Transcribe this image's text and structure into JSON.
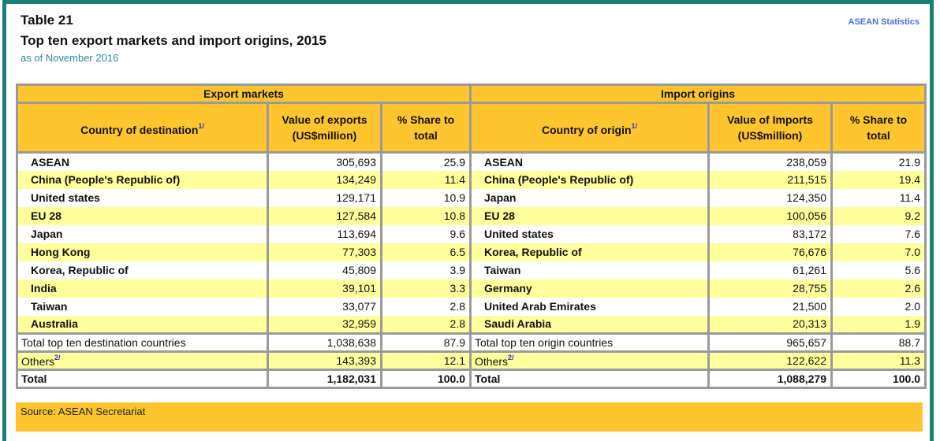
{
  "header": {
    "table_number": "Table 21",
    "title": "Top ten export markets and import origins, 2015",
    "subtitle": "as of November 2016",
    "brand": "ASEAN Statistics"
  },
  "exports": {
    "group_label": "Export markets",
    "col_country": "Country of destination",
    "col_country_fn": "1/",
    "col_value": "Value of exports (US$million)",
    "col_value_l1": "Value of exports",
    "col_value_l2": "(US$million)",
    "col_share_l1": "% Share to",
    "col_share_l2": "total",
    "rows": [
      {
        "country": "ASEAN",
        "value": "305,693",
        "share": "25.9"
      },
      {
        "country": "China (People's Republic of)",
        "value": "134,249",
        "share": "11.4"
      },
      {
        "country": "United states",
        "value": "129,171",
        "share": "10.9"
      },
      {
        "country": "EU 28",
        "value": "127,584",
        "share": "10.8"
      },
      {
        "country": "Japan",
        "value": "113,694",
        "share": "9.6"
      },
      {
        "country": "Hong Kong",
        "value": "77,303",
        "share": "6.5"
      },
      {
        "country": "Korea, Republic of",
        "value": "45,809",
        "share": "3.9"
      },
      {
        "country": "India",
        "value": "39,101",
        "share": "3.3"
      },
      {
        "country": "Taiwan",
        "value": "33,077",
        "share": "2.8"
      },
      {
        "country": "Australia",
        "value": "32,959",
        "share": "2.8"
      }
    ],
    "top_ten": {
      "label": "Total top ten destination countries",
      "value": "1,038,638",
      "share": "87.9"
    },
    "others": {
      "label": "Others",
      "fn": "2/",
      "value": "143,393",
      "share": "12.1"
    },
    "total": {
      "label": "Total",
      "value": "1,182,031",
      "share": "100.0"
    }
  },
  "imports": {
    "group_label": "Import origins",
    "col_country": "Country of origin",
    "col_country_fn": "1/",
    "col_value_l1": "Value of Imports",
    "col_value_l2": "(US$million)",
    "col_share_l1": "% Share to",
    "col_share_l2": "total",
    "rows": [
      {
        "country": "ASEAN",
        "value": "238,059",
        "share": "21.9"
      },
      {
        "country": "China (People's Republic of)",
        "value": "211,515",
        "share": "19.4"
      },
      {
        "country": "Japan",
        "value": "124,350",
        "share": "11.4"
      },
      {
        "country": "EU 28",
        "value": "100,056",
        "share": "9.2"
      },
      {
        "country": "United states",
        "value": "83,172",
        "share": "7.6"
      },
      {
        "country": "Korea, Republic of",
        "value": "76,676",
        "share": "7.0"
      },
      {
        "country": "Taiwan",
        "value": "61,261",
        "share": "5.6"
      },
      {
        "country": "Germany",
        "value": "28,755",
        "share": "2.6"
      },
      {
        "country": "United Arab Emirates",
        "value": "21,500",
        "share": "2.0"
      },
      {
        "country": "Saudi Arabia",
        "value": "20,313",
        "share": "1.9"
      }
    ],
    "top_ten": {
      "label": "Total top ten origin countries",
      "value": "965,657",
      "share": "88.7"
    },
    "others": {
      "label": "Others",
      "fn": "2/",
      "value": "122,622",
      "share": "11.3"
    },
    "total": {
      "label": "Total",
      "value": "1,088,279",
      "share": "100.0"
    }
  },
  "footer": {
    "source": "Source:  ASEAN Secretariat"
  },
  "colors": {
    "frame": "#1a7f78",
    "header_fill": "#fec52e",
    "stripe_fill": "#ffff9c",
    "border": "#9a9a9a",
    "brand": "#4a6ee0",
    "subtitle": "#2e8a9a"
  }
}
